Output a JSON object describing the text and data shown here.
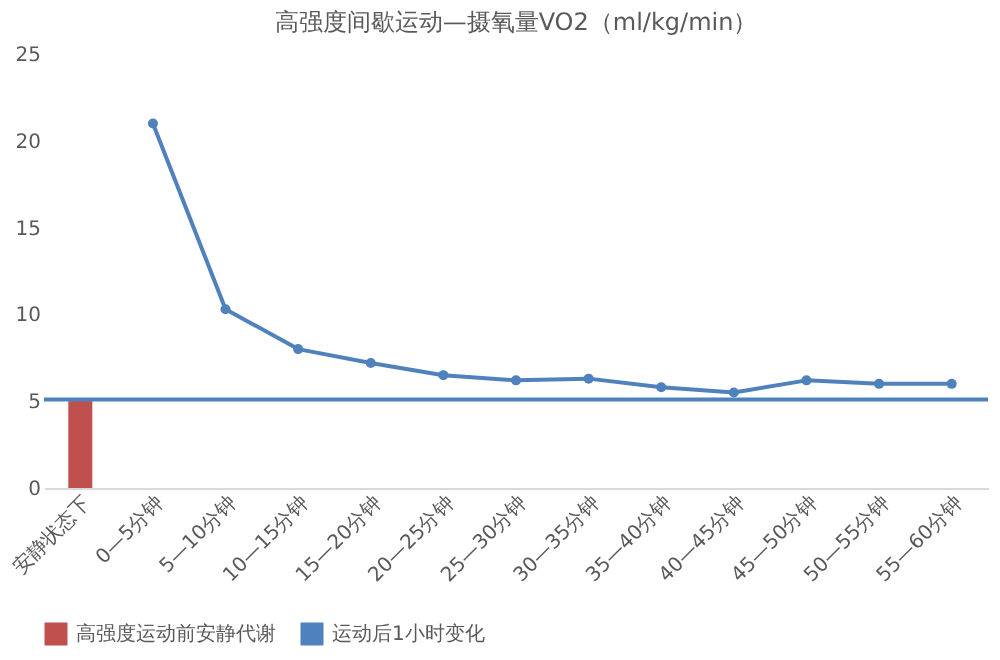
{
  "chart_data": {
    "type": "bar",
    "title": "高强度间歇运动—摄氧量VO2（ml/kg/min）",
    "categories": [
      "安静状态下",
      "0—5分钟",
      "5—10分钟",
      "10—15分钟",
      "15—20分钟",
      "20—25分钟",
      "25—30分钟",
      "30—35分钟",
      "35—40分钟",
      "40—45分钟",
      "45—50分钟",
      "50—55分钟",
      "55—60分钟"
    ],
    "series": [
      {
        "name": "高强度运动前安静代谢",
        "color": "#c0504d",
        "values": [
          5.1,
          null,
          null,
          null,
          null,
          null,
          null,
          null,
          null,
          null,
          null,
          null,
          null
        ]
      },
      {
        "name": "运动后1小时变化",
        "type": "line",
        "color": "#4f81bd",
        "marker": "circle",
        "values": [
          null,
          21,
          10.3,
          8.0,
          7.2,
          6.5,
          6.2,
          6.3,
          5.8,
          5.5,
          6.2,
          6.0,
          6.0
        ]
      }
    ],
    "ylim": [
      0,
      25
    ],
    "yticks": [
      0,
      5,
      10,
      15,
      20,
      25
    ],
    "grid": false,
    "legend": "bottom",
    "ref_lines": [
      {
        "axis": "y",
        "value": 5.1,
        "label": null,
        "color": "#4f81bd"
      }
    ]
  }
}
